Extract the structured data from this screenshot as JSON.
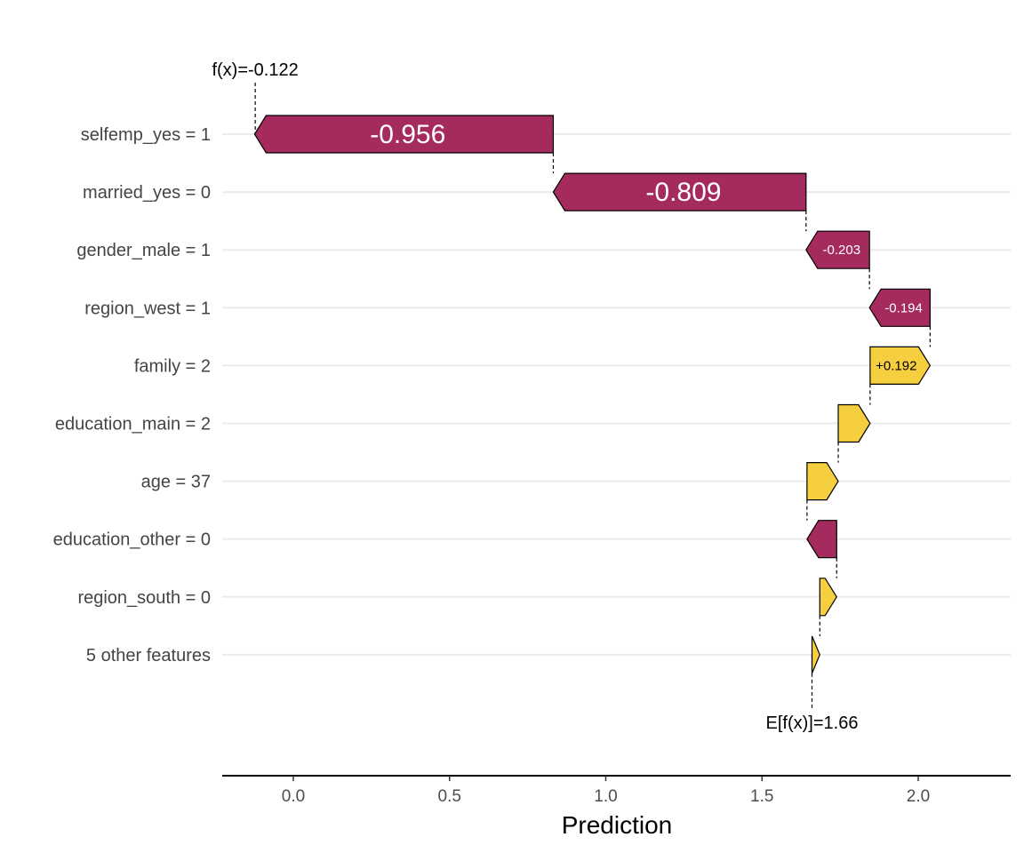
{
  "chart_data": {
    "type": "waterfall",
    "xlabel": "Prediction",
    "xlim": [
      -0.23,
      2.3
    ],
    "xticks": [
      {
        "value": 0.0,
        "label": "0.0"
      },
      {
        "value": 0.5,
        "label": "0.5"
      },
      {
        "value": 1.0,
        "label": "1.0"
      },
      {
        "value": 1.5,
        "label": "1.5"
      },
      {
        "value": 2.0,
        "label": "2.0"
      }
    ],
    "base_value": 1.66,
    "base_label": "E[f(x)]=1.66",
    "prediction": -0.122,
    "prediction_label": "f(x)=-0.122",
    "grid": true,
    "colors": {
      "negative": "#A52A5E",
      "positive": "#F5CF3F",
      "outline": "#000000",
      "grid": "#ebebeb"
    },
    "features": [
      {
        "name": "selfemp_yes = 1",
        "value": -0.956,
        "label": "-0.956"
      },
      {
        "name": "married_yes = 0",
        "value": -0.809,
        "label": "-0.809"
      },
      {
        "name": "gender_male = 1",
        "value": -0.203,
        "label": "-0.203"
      },
      {
        "name": "region_west = 1",
        "value": -0.194,
        "label": "-0.194"
      },
      {
        "name": "family = 2",
        "value": 0.192,
        "label": "+0.192"
      },
      {
        "name": "education_main = 2",
        "value": 0.102,
        "label": ""
      },
      {
        "name": "age = 37",
        "value": 0.1,
        "label": ""
      },
      {
        "name": "education_other = 0",
        "value": -0.095,
        "label": ""
      },
      {
        "name": "region_south = 0",
        "value": 0.054,
        "label": ""
      },
      {
        "name": "5 other features",
        "value": 0.025,
        "label": ""
      }
    ]
  }
}
